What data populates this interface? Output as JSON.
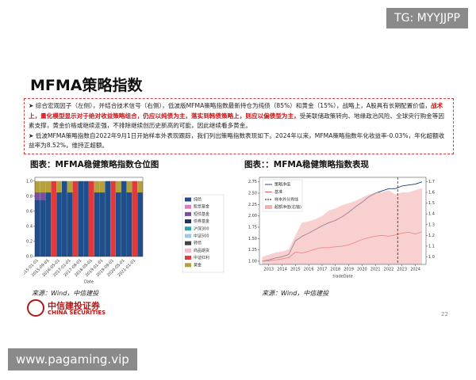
{
  "watermark_top": "TG: MYYJJPP",
  "watermark_bottom": "www.pagaming.vip",
  "title": "MFMA策略指数",
  "bullets": [
    [
      "综合宏观因子（左侧），并结合技术信号（右侧），低波版MFMA策略指数最新持仓为纯债（85%）和黄金（15%），战略上，A股具有长期配置价值，",
      "战术上，量化模型显示对于绝对收益策略组合，仍应以纯债为主，落实到韩债策略上，则应以偏债型为主，",
      "受美联储政策转向、地缘政治风险、全球央行购金等因素支撑，黄金价格或继续走强，不排除继续创历史新高的可能，因此继续看多黄金。"
    ],
    [
      "低波MFMA策略指数自2022年9月1日开始样本外表现跟踪，我们列出策略指数表现如下。2024年以来，MFMA策略指数年化收益率-0.03%，年化超额收益率为8.52%，维持正超额。"
    ]
  ],
  "sources": [
    "来源：Wind，中信建投",
    "来源：Wind，中信建投"
  ],
  "logo": {
    "name": "中信建投证券",
    "english": "CHINA SECURITIES"
  },
  "page_number": "22",
  "chart_data": [
    {
      "type": "stacked_bar",
      "title": "图表：MFMA稳健策略指数仓位图",
      "xlabel": "Date",
      "categories": [
        "2015-01-01",
        null,
        "2015-09-01",
        null,
        "2016-05-01",
        null,
        "2017-01-01",
        null,
        "2017-09-01",
        null,
        "2018-05-01",
        null,
        "2019-01-01",
        null,
        "2019-09-01",
        null,
        "2020-05-01",
        null,
        "2021-01-01",
        null
      ],
      "ylim": [
        0,
        1.05
      ],
      "yticks": [
        {
          "value": 0,
          "label": "0.0"
        },
        0.2,
        0.4,
        0.6,
        0.8,
        {
          "value": 1,
          "label": "1.0"
        }
      ],
      "series": [
        {
          "name": "纯债",
          "color": "#1f4e8c",
          "values": [
            0.75,
            0.75,
            0.85,
            0,
            0.85,
            1,
            0.85,
            0,
            1,
            1,
            0,
            0.85,
            0.85,
            1,
            0,
            0.85,
            1,
            0.85,
            0,
            0.85
          ]
        },
        {
          "name": "股票基金",
          "color": "#e377c2",
          "values": [
            0,
            0,
            0,
            0,
            0,
            0,
            0,
            0,
            0,
            0,
            0,
            0,
            0,
            0,
            0,
            0,
            0,
            0,
            0,
            0
          ]
        },
        {
          "name": "短债基金",
          "color": "#7b4fa0",
          "values": [
            0.1,
            0.1,
            0,
            0,
            0,
            0,
            0,
            0,
            0,
            0,
            0,
            0,
            0,
            0,
            0,
            0,
            0,
            0,
            0,
            0
          ]
        },
        {
          "name": "债券基金",
          "color": "#17355e",
          "values": [
            0,
            0,
            0,
            0,
            0,
            0,
            0,
            0,
            0,
            0,
            0,
            0,
            0,
            0,
            0,
            0,
            0,
            0,
            0,
            0
          ]
        },
        {
          "name": "沪深300",
          "color": "#2ca6a4",
          "values": [
            0,
            0,
            0,
            0,
            0,
            0,
            0,
            0,
            0,
            0,
            0,
            0,
            0,
            0,
            0,
            0,
            0,
            0,
            0,
            0
          ]
        },
        {
          "name": "中证500",
          "color": "#9ecae1",
          "values": [
            0,
            0,
            0,
            0,
            0,
            0,
            0,
            0,
            0,
            0,
            0,
            0,
            0,
            0,
            0,
            0,
            0,
            0,
            0,
            0
          ]
        },
        {
          "name": "转债",
          "color": "#444444",
          "values": [
            0,
            0,
            0,
            0,
            0,
            0,
            0,
            0,
            0,
            0,
            0,
            0,
            0,
            0,
            0,
            0,
            0,
            0,
            0,
            0
          ]
        },
        {
          "name": "商品期货",
          "color": "#f7b6d2",
          "values": [
            0,
            0,
            0,
            0,
            0,
            0,
            0,
            0,
            0,
            0,
            0,
            0,
            0,
            0,
            0,
            0,
            0,
            0,
            0,
            0
          ]
        },
        {
          "name": "中证红利",
          "color": "#e03a3a",
          "values": [
            0,
            0,
            0,
            1,
            0,
            0,
            0,
            1,
            0,
            0,
            1,
            0,
            0,
            0,
            1,
            0,
            0,
            0,
            1,
            0
          ]
        },
        {
          "name": "黄金",
          "color": "#b5a13a",
          "values": [
            0.15,
            0.15,
            0.15,
            0,
            0.15,
            0,
            0.15,
            0,
            0,
            0,
            0,
            0.15,
            0.15,
            0,
            0,
            0.15,
            0,
            0.15,
            0,
            0.15
          ]
        }
      ]
    },
    {
      "type": "line",
      "title": "图表：：MFMA稳健策略指数表现",
      "xlabel": "tradeDate",
      "x": [
        2012.5,
        2013,
        2013.5,
        2014,
        2014.5,
        2015,
        2015.5,
        2016,
        2016.5,
        2017,
        2017.5,
        2018,
        2018.5,
        2019,
        2019.5,
        2020,
        2020.5,
        2021,
        2021.5,
        2022,
        2022.5,
        2023,
        2023.5,
        2024,
        2024.5
      ],
      "xlim": [
        2012.3,
        2024.8
      ],
      "xticks": [
        2013,
        2014,
        2015,
        2016,
        2017,
        2018,
        2019,
        2020,
        2021,
        2022,
        2023,
        2024
      ],
      "ylim": [
        0.93,
        2.85
      ],
      "yticks": [
        {
          "value": 1,
          "label": "1.00"
        },
        1.25,
        {
          "value": 1.5,
          "label": "1.50"
        },
        1.75,
        {
          "value": 2,
          "label": "2.00"
        },
        2.25,
        {
          "value": 2.5,
          "label": "2.50"
        },
        2.75
      ],
      "y2lim": [
        0.93,
        1.74
      ],
      "y2ticks": [
        {
          "value": 1,
          "label": "1.0"
        },
        1.1,
        1.2,
        1.3,
        1.4,
        1.5,
        1.6,
        1.7
      ],
      "divider": {
        "name": "样本外分界线",
        "x": 2022.67
      },
      "series": [
        {
          "name": "策略净值",
          "color": "#1f3a6e",
          "values": [
            1,
            1.03,
            1.07,
            1.1,
            1.15,
            1.45,
            1.55,
            1.62,
            1.7,
            1.78,
            1.85,
            1.9,
            1.98,
            2.08,
            2.2,
            2.3,
            2.42,
            2.5,
            2.55,
            2.6,
            2.6,
            2.66,
            2.68,
            2.7,
            2.75
          ]
        },
        {
          "name": "基准",
          "color": "#e05050",
          "values": [
            1,
            1.01,
            1.03,
            1.05,
            1.08,
            1.2,
            1.18,
            1.22,
            1.27,
            1.3,
            1.3,
            1.32,
            1.33,
            1.36,
            1.42,
            1.48,
            1.52,
            1.55,
            1.57,
            1.55,
            1.58,
            1.62,
            1.64,
            1.6,
            1.65
          ]
        },
        {
          "name": "超额净值(右轴)",
          "color": "#f4b0b0",
          "axis": "y2",
          "values": [
            1,
            1.02,
            1.04,
            1.05,
            1.07,
            1.2,
            1.32,
            1.33,
            1.35,
            1.38,
            1.43,
            1.45,
            1.48,
            1.5,
            1.52,
            1.55,
            1.58,
            1.6,
            1.6,
            1.62,
            1.58,
            1.6,
            1.6,
            1.62,
            1.64
          ]
        }
      ]
    }
  ]
}
